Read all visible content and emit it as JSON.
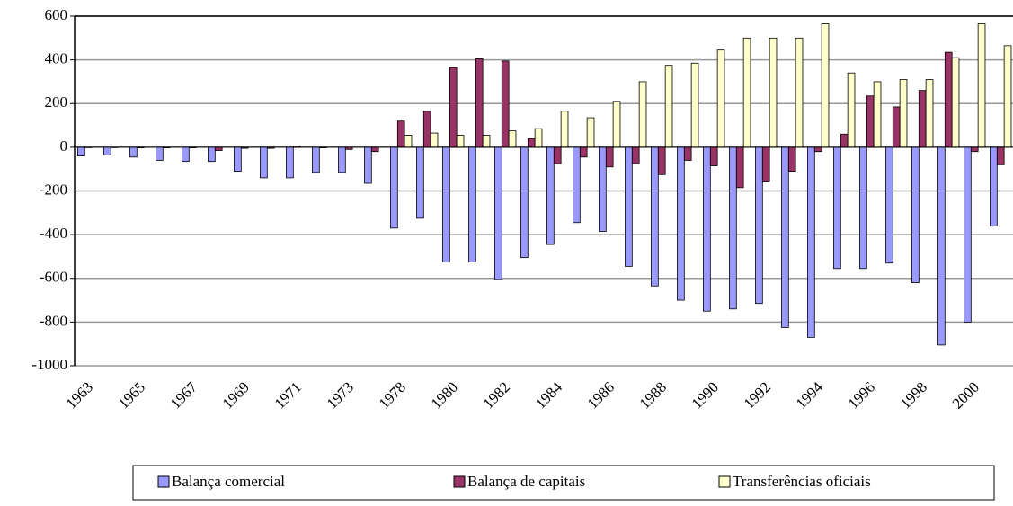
{
  "chart_data": {
    "type": "bar",
    "categories": [
      "1963",
      null,
      "1965",
      null,
      "1967",
      null,
      "1969",
      null,
      "1971",
      null,
      "1973",
      null,
      "1978",
      null,
      "1980",
      null,
      "1982",
      null,
      "1984",
      null,
      "1986",
      null,
      "1988",
      null,
      "1990",
      null,
      "1992",
      null,
      "1994",
      null,
      "1996",
      null,
      "1998",
      null,
      "2000",
      null
    ],
    "series": [
      {
        "name": "Balança comercial",
        "color": "#9999ff",
        "values": [
          -40,
          -35,
          -45,
          -60,
          -65,
          -65,
          -110,
          -140,
          -140,
          -115,
          -115,
          -165,
          -370,
          -325,
          -525,
          -525,
          -605,
          -505,
          -445,
          -345,
          -385,
          -545,
          -635,
          -700,
          -750,
          -740,
          -715,
          -825,
          -870,
          -555,
          -555,
          -530,
          -620,
          -905,
          -800,
          -360
        ]
      },
      {
        "name": "Balança de capitais",
        "color": "#993366",
        "values": [
          -2,
          -2,
          -3,
          -3,
          -3,
          -15,
          -5,
          -5,
          5,
          -3,
          -10,
          -20,
          120,
          165,
          365,
          405,
          395,
          40,
          -75,
          -45,
          -90,
          -75,
          -125,
          -60,
          -85,
          -185,
          -155,
          -110,
          -20,
          60,
          235,
          185,
          260,
          435,
          -20,
          -80
        ]
      },
      {
        "name": "Transferências oficiais",
        "color": "#ffffcc",
        "values": [
          0,
          0,
          0,
          0,
          0,
          0,
          0,
          0,
          0,
          0,
          0,
          0,
          55,
          65,
          55,
          55,
          75,
          85,
          165,
          135,
          210,
          300,
          375,
          385,
          445,
          500,
          500,
          500,
          565,
          340,
          300,
          310,
          310,
          410,
          565,
          465
        ]
      }
    ],
    "ylim": [
      -1000,
      600
    ],
    "yticks": [
      -1000,
      -800,
      -600,
      -400,
      -200,
      0,
      200,
      400,
      600
    ],
    "grid": true,
    "legend": "bottom"
  }
}
